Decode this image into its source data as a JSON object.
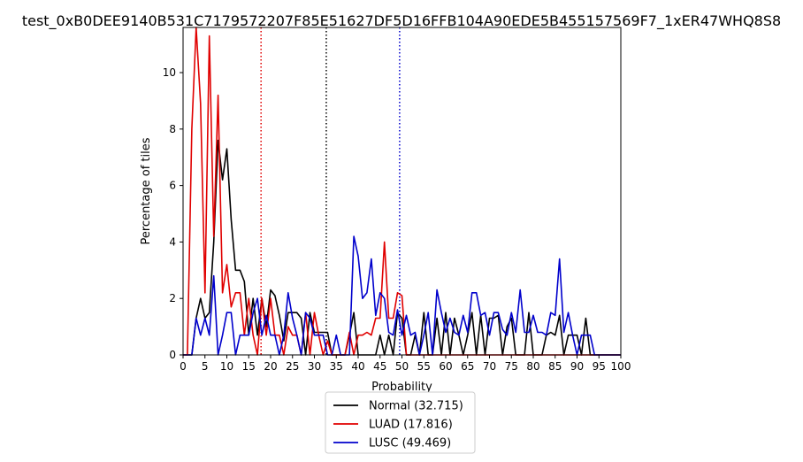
{
  "chart_data": {
    "type": "line",
    "title": "test_0xB0DEE9140B531C7179572207F85E51627DF5D16FFB104A90EDE5B455157569F7_1xER47WHQ8S8",
    "xlabel": "Probability",
    "ylabel": "Percentage of tiles",
    "xlim": [
      0,
      100
    ],
    "ylim": [
      0,
      11.6
    ],
    "xticks": [
      0,
      5,
      10,
      15,
      20,
      25,
      30,
      35,
      40,
      45,
      50,
      55,
      60,
      65,
      70,
      75,
      80,
      85,
      90,
      95,
      100
    ],
    "yticks": [
      0,
      2,
      4,
      6,
      8,
      10
    ],
    "grid": false,
    "legend_position": "below",
    "vlines": [
      {
        "x": 32.715,
        "color": "#000000",
        "style": "dotted"
      },
      {
        "x": 17.816,
        "color": "#e00000",
        "style": "dotted"
      },
      {
        "x": 49.469,
        "color": "#0000cc",
        "style": "dotted"
      }
    ],
    "series": [
      {
        "name": "Normal (32.715)",
        "color": "#000000",
        "x": [
          0,
          1,
          2,
          3,
          4,
          5,
          6,
          7,
          8,
          9,
          10,
          11,
          12,
          13,
          14,
          15,
          16,
          17,
          18,
          19,
          20,
          21,
          22,
          23,
          24,
          25,
          26,
          27,
          28,
          29,
          30,
          31,
          32,
          33,
          34,
          35,
          36,
          37,
          38,
          39,
          40,
          41,
          42,
          43,
          44,
          45,
          46,
          47,
          48,
          49,
          50,
          51,
          52,
          53,
          54,
          55,
          56,
          57,
          58,
          59,
          60,
          61,
          62,
          63,
          64,
          65,
          66,
          67,
          68,
          69,
          70,
          71,
          72,
          73,
          74,
          75,
          76,
          77,
          78,
          79,
          80,
          81,
          82,
          83,
          84,
          85,
          86,
          87,
          88,
          89,
          90,
          91,
          92,
          93,
          94,
          95,
          96,
          97,
          98,
          99,
          100
        ],
        "y": [
          0,
          0,
          0,
          1.3,
          2.0,
          1.3,
          1.5,
          4.0,
          7.6,
          6.2,
          7.3,
          4.8,
          3.0,
          3.0,
          2.6,
          0.7,
          2.0,
          0.7,
          2.0,
          1.0,
          2.3,
          2.1,
          1.4,
          0.5,
          1.5,
          1.5,
          1.5,
          1.3,
          0,
          1.5,
          0.8,
          0.8,
          0.8,
          0.8,
          0,
          0,
          0,
          0,
          0.7,
          1.5,
          0,
          0,
          0,
          0,
          0,
          0.7,
          0,
          0.7,
          0,
          1.5,
          1.3,
          0,
          0,
          0.7,
          0,
          1.5,
          0,
          0,
          1.3,
          0,
          1.5,
          0,
          1.3,
          0.7,
          0,
          0.7,
          1.5,
          0,
          1.4,
          0,
          1.3,
          1.3,
          1.4,
          0,
          1.0,
          1.3,
          0,
          0,
          0,
          1.5,
          0,
          0,
          0,
          0.7,
          0.8,
          0.7,
          1.4,
          0,
          0.7,
          0.7,
          0.7,
          0,
          1.3,
          0,
          0,
          0,
          0,
          0,
          0,
          0,
          0
        ]
      },
      {
        "name": "LUAD (17.816)",
        "color": "#e00000",
        "x": [
          0,
          1,
          2,
          3,
          4,
          5,
          6,
          7,
          8,
          9,
          10,
          11,
          12,
          13,
          14,
          15,
          16,
          17,
          18,
          19,
          20,
          21,
          22,
          23,
          24,
          25,
          26,
          27,
          28,
          29,
          30,
          31,
          32,
          33,
          34,
          35,
          36,
          37,
          38,
          39,
          40,
          41,
          42,
          43,
          44,
          45,
          46,
          47,
          48,
          49,
          50,
          51,
          52,
          53,
          54,
          55,
          56,
          57,
          58,
          59,
          60,
          61,
          62,
          63,
          64,
          65,
          66,
          67,
          68,
          69,
          70,
          71,
          72,
          73,
          74,
          75,
          76,
          77,
          78,
          79,
          80,
          81,
          82,
          83,
          84,
          85,
          86,
          87,
          88,
          89,
          90,
          91,
          92,
          93,
          94,
          95,
          96,
          97,
          98,
          99,
          100
        ],
        "y": [
          0,
          0,
          8.0,
          11.6,
          8.9,
          2.2,
          11.3,
          4.2,
          9.2,
          2.2,
          3.2,
          1.7,
          2.2,
          2.2,
          0.7,
          2.0,
          0.7,
          0,
          2.0,
          0.7,
          2.0,
          0.7,
          0.7,
          0,
          1.0,
          0.7,
          0.7,
          0,
          1.5,
          0,
          1.5,
          0.7,
          0,
          0.5,
          0,
          0,
          0,
          0,
          0.8,
          0,
          0.7,
          0.7,
          0.8,
          0.7,
          1.3,
          1.3,
          4.0,
          1.3,
          1.3,
          2.2,
          2.1,
          0,
          0,
          0,
          0,
          0,
          0,
          0,
          0,
          0,
          0,
          0,
          0,
          0,
          0,
          0,
          0,
          0,
          0,
          0,
          0,
          0,
          0,
          0,
          0,
          0,
          0,
          0,
          0,
          0,
          0,
          0,
          0,
          0,
          0,
          0,
          0,
          0,
          0,
          0,
          0,
          0,
          0,
          0,
          0,
          0,
          0,
          0,
          0,
          0,
          0
        ]
      },
      {
        "name": "LUSC (49.469)",
        "color": "#0000cc",
        "x": [
          0,
          1,
          2,
          3,
          4,
          5,
          6,
          7,
          8,
          9,
          10,
          11,
          12,
          13,
          14,
          15,
          16,
          17,
          18,
          19,
          20,
          21,
          22,
          23,
          24,
          25,
          26,
          27,
          28,
          29,
          30,
          31,
          32,
          33,
          34,
          35,
          36,
          37,
          38,
          39,
          40,
          41,
          42,
          43,
          44,
          45,
          46,
          47,
          48,
          49,
          50,
          51,
          52,
          53,
          54,
          55,
          56,
          57,
          58,
          59,
          60,
          61,
          62,
          63,
          64,
          65,
          66,
          67,
          68,
          69,
          70,
          71,
          72,
          73,
          74,
          75,
          76,
          77,
          78,
          79,
          80,
          81,
          82,
          83,
          84,
          85,
          86,
          87,
          88,
          89,
          90,
          91,
          92,
          93,
          94,
          95,
          96,
          97,
          98,
          99,
          100
        ],
        "y": [
          0,
          0,
          0,
          1.3,
          0.7,
          1.3,
          0.7,
          2.8,
          0,
          0.7,
          1.5,
          1.5,
          0,
          0.7,
          0.7,
          0.7,
          1.5,
          2.0,
          0.7,
          1.4,
          0.7,
          0.7,
          0,
          0.7,
          2.2,
          1.3,
          0.7,
          0,
          1.5,
          1.3,
          0.7,
          0.7,
          0.7,
          0,
          0,
          0.7,
          0,
          0,
          0,
          4.2,
          3.5,
          2.0,
          2.2,
          3.4,
          1.4,
          2.2,
          2.0,
          0.8,
          0.7,
          1.6,
          0.7,
          1.4,
          0.7,
          0.8,
          0,
          0.7,
          1.5,
          0,
          2.3,
          1.5,
          0.8,
          1.3,
          0.8,
          0.7,
          1.4,
          0.8,
          2.2,
          2.2,
          1.4,
          1.5,
          0.7,
          1.5,
          1.5,
          0.9,
          0.7,
          1.5,
          0.8,
          2.3,
          0.8,
          0.8,
          1.4,
          0.8,
          0.8,
          0.7,
          1.5,
          1.4,
          3.4,
          0.8,
          1.5,
          0.7,
          0,
          0.7,
          0.7,
          0.7,
          0,
          0,
          0,
          0,
          0,
          0,
          0
        ]
      }
    ]
  }
}
